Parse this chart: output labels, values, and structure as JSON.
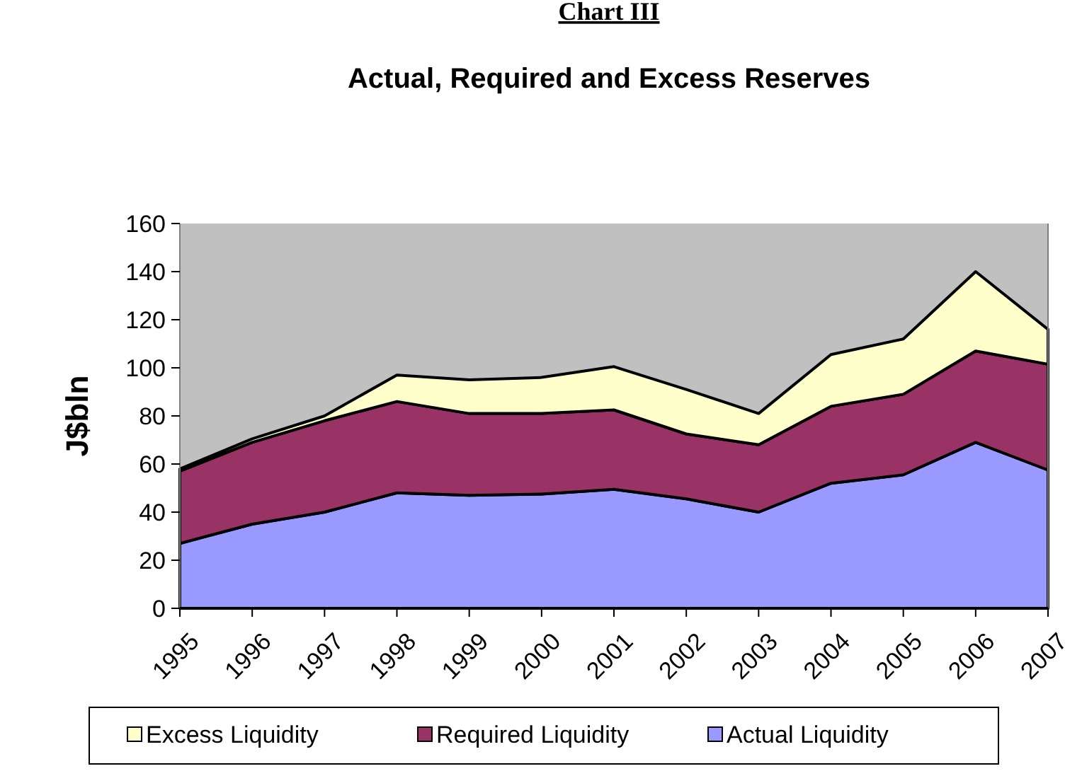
{
  "chart_data": {
    "type": "area",
    "title": "Actual, Required and Excess Reserves",
    "subtitle": "Chart III",
    "ylabel": "J$bln",
    "categories": [
      "1995",
      "1996",
      "1997",
      "1998",
      "1999",
      "2000",
      "2001",
      "2002",
      "2003",
      "2004",
      "2005",
      "2006",
      "2007"
    ],
    "stacked": true,
    "ylim": [
      0,
      160
    ],
    "yticks": [
      0,
      20,
      40,
      60,
      80,
      100,
      120,
      140,
      160
    ],
    "grid": false,
    "legend": "bottom",
    "series": [
      {
        "name": "Actual Liquidity",
        "color": "#9999ff",
        "values": [
          27,
          35,
          40,
          48,
          47,
          47.5,
          49.5,
          45.5,
          40,
          52,
          55.5,
          69,
          57.5
        ]
      },
      {
        "name": "Required Liquidity",
        "color": "#993366",
        "values": [
          30,
          34,
          38,
          38,
          34,
          33.5,
          33,
          27,
          28,
          32,
          33.5,
          38,
          44
        ]
      },
      {
        "name": "Excess Liquidity",
        "color": "#ffffcc",
        "values": [
          1,
          1.5,
          2,
          11,
          14,
          15,
          18,
          18.5,
          13,
          21.5,
          23,
          33,
          14.5
        ]
      }
    ]
  }
}
